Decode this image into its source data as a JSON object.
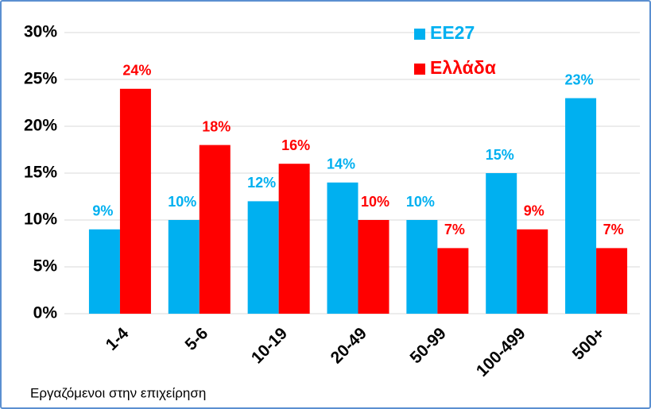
{
  "chart_data": {
    "type": "bar",
    "x_label": "Εργαζόμενοι στην επιχείρηση",
    "categories": [
      "1-4",
      "5-6",
      "10-19",
      "20-49",
      "50-99",
      "100-499",
      "500+"
    ],
    "series": [
      {
        "name": "EE27",
        "color": "#00b0f0",
        "values": [
          9,
          10,
          12,
          14,
          10,
          15,
          23
        ],
        "value_labels": [
          "9%",
          "10%",
          "12%",
          "14%",
          "10%",
          "15%",
          "23%"
        ]
      },
      {
        "name": "Ελλάδα",
        "color": "#ff0000",
        "values": [
          24,
          18,
          16,
          10,
          7,
          9,
          7
        ],
        "value_labels": [
          "24%",
          "18%",
          "16%",
          "10%",
          "7%",
          "9%",
          "7%"
        ]
      }
    ],
    "ylim": [
      0,
      30
    ],
    "yticks": [
      {
        "value": 0,
        "label": "0%"
      },
      {
        "value": 5,
        "label": "5%"
      },
      {
        "value": 10,
        "label": "10%"
      },
      {
        "value": 15,
        "label": "15%"
      },
      {
        "value": 20,
        "label": "20%"
      },
      {
        "value": 25,
        "label": "25%"
      },
      {
        "value": 30,
        "label": "30%"
      }
    ],
    "grid": true,
    "legend": "top-right"
  }
}
